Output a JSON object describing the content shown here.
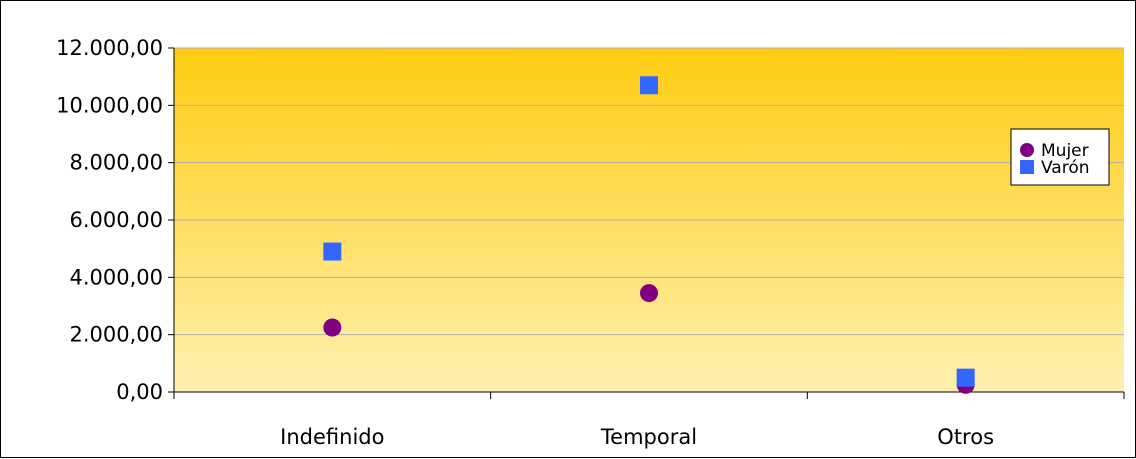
{
  "chart_data": {
    "type": "scatter",
    "categories": [
      "Indefinido",
      "Temporal",
      "Otros"
    ],
    "series": [
      {
        "name": "Mujer",
        "marker": "circle",
        "color": "#800080",
        "values": [
          2250,
          3450,
          250
        ]
      },
      {
        "name": "Varón",
        "marker": "square",
        "color": "#3366ff",
        "values": [
          4900,
          10700,
          500
        ]
      }
    ],
    "y_ticks": [
      "0,00",
      "2.000,00",
      "4.000,00",
      "6.000,00",
      "8.000,00",
      "10.000,00",
      "12.000,00"
    ],
    "ylim": [
      0,
      12000
    ],
    "grid": true,
    "legend_position": "right",
    "plot_gradient": {
      "top": "#ffcc11",
      "bottom": "#fff0b0"
    },
    "gridline_color": "#b0b0b0"
  }
}
